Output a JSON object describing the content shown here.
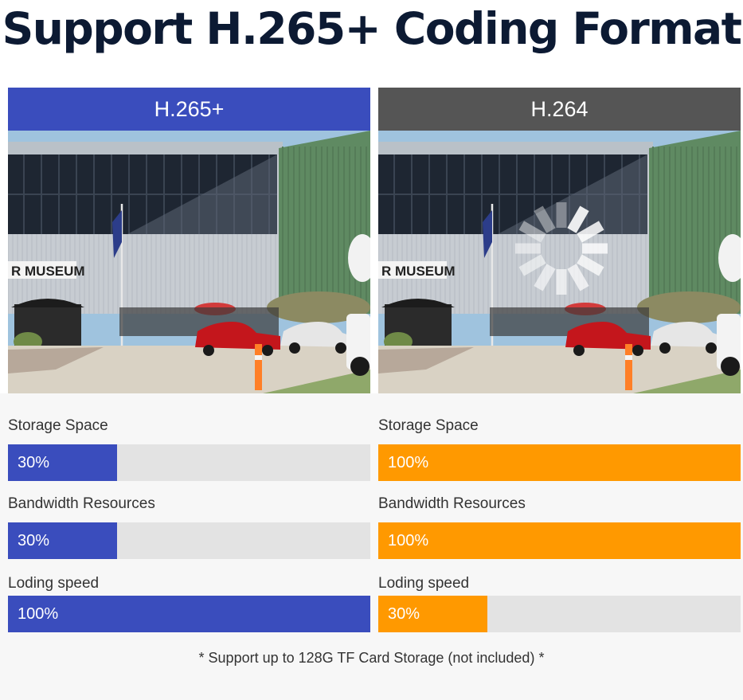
{
  "title": "Support H.265+ Coding Format",
  "sign_text": "R MUSEUM",
  "colors": {
    "blue": "#3a4dbd",
    "gray_header": "#555555",
    "orange": "#ff9900"
  },
  "columns": [
    {
      "header": "H.265+",
      "header_color": "#3a4dbd",
      "bar_color": "#3a4dbd",
      "loading_overlay": false,
      "stats": [
        {
          "label": "Storage Space",
          "value_text": "30%",
          "value": 30
        },
        {
          "label": "Bandwidth Resources",
          "value_text": "30%",
          "value": 30
        },
        {
          "label": "Loding speed",
          "value_text": "100%",
          "value": 100
        }
      ]
    },
    {
      "header": "H.264",
      "header_color": "#555555",
      "bar_color": "#ff9900",
      "loading_overlay": true,
      "stats": [
        {
          "label": "Storage Space",
          "value_text": "100%",
          "value": 100
        },
        {
          "label": "Bandwidth Resources",
          "value_text": "100%",
          "value": 100
        },
        {
          "label": "Loding speed",
          "value_text": "30%",
          "value": 30
        }
      ]
    }
  ],
  "footnote": "* Support up to 128G TF Card Storage (not included) *"
}
